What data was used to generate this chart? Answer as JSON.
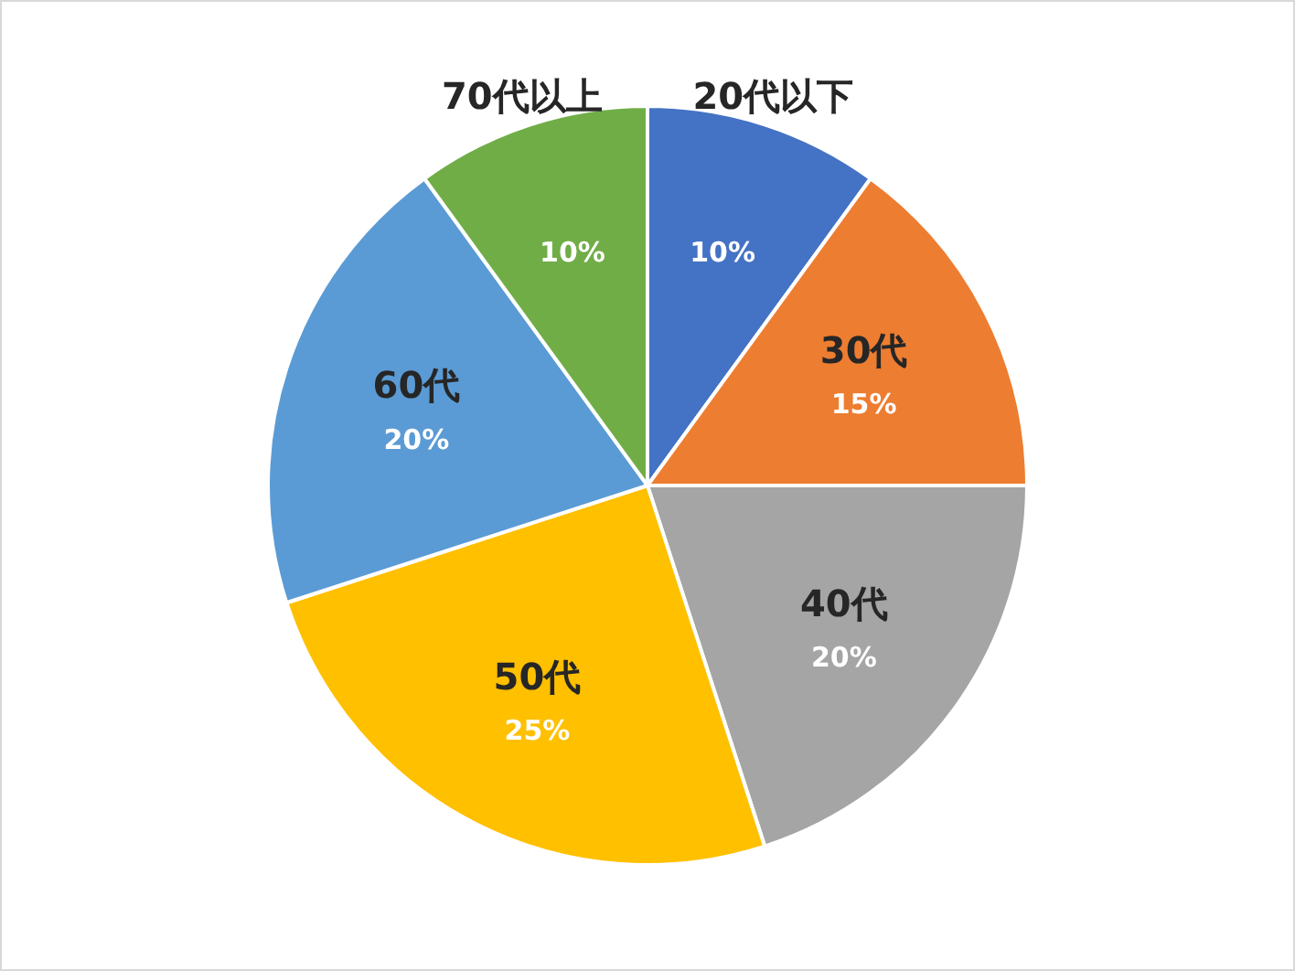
{
  "chart_data": {
    "type": "pie",
    "categories": [
      "20代以下",
      "30代",
      "40代",
      "50代",
      "60代",
      "70代以上"
    ],
    "values": [
      10,
      15,
      20,
      25,
      20,
      10
    ],
    "value_labels": [
      "10%",
      "15%",
      "20%",
      "25%",
      "20%",
      "10%"
    ],
    "colors": [
      "#4472c4",
      "#ed7d31",
      "#a5a5a5",
      "#ffc000",
      "#5b9bd5",
      "#70ad47"
    ],
    "legend": false
  }
}
